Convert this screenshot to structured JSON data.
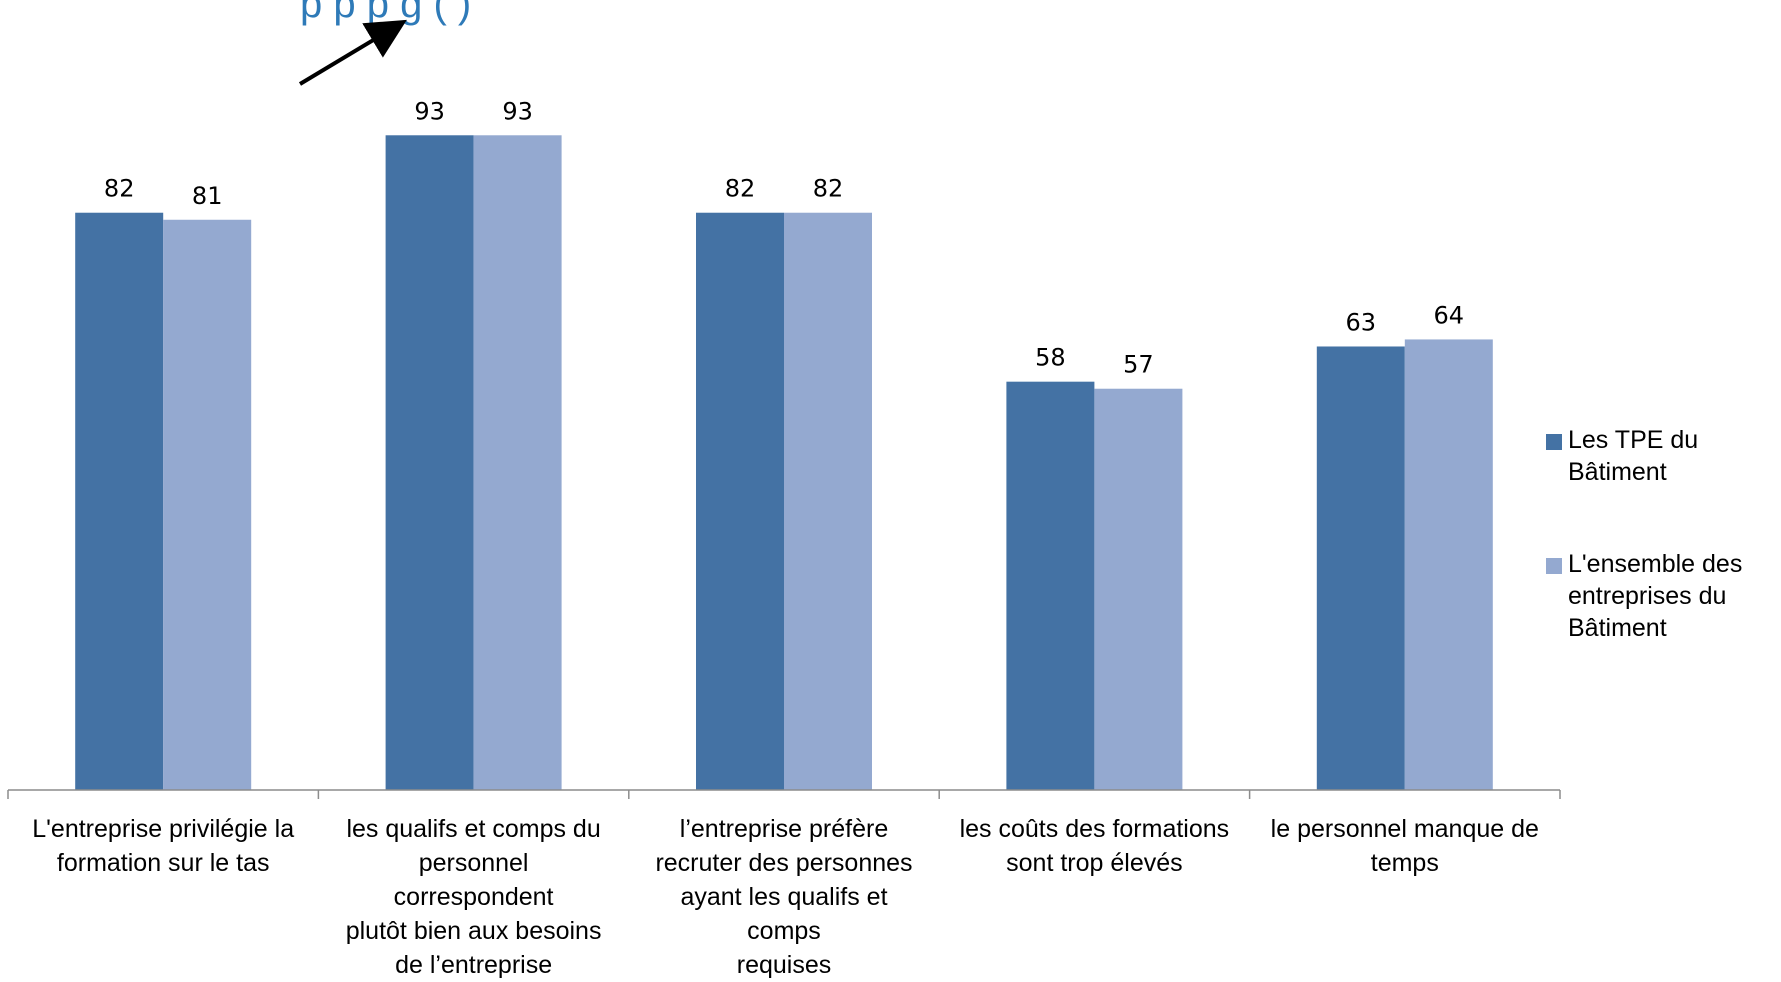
{
  "title_partial": "p          p                       p     g                           (   )",
  "colors": {
    "series1": "#4472a4",
    "series2": "#94a9d0",
    "title": "#2e7ab8",
    "axis": "#8c8c8c",
    "arrow": "#000000"
  },
  "chart_data": {
    "type": "bar",
    "categories": [
      "L'entreprise privilégie la formation sur le tas",
      "les qualifs et comps du personnel correspondent plutôt bien aux besoins de l’entreprise",
      "l’entreprise préfère recruter des personnes ayant les qualifs et comps requises",
      "les coûts des formations sont trop élevés",
      "le personnel manque de temps"
    ],
    "category_lines": [
      [
        "L'entreprise privilégie la",
        "formation sur le tas"
      ],
      [
        "les qualifs et comps du",
        "personnel correspondent",
        "plutôt bien aux besoins",
        "de l’entreprise"
      ],
      [
        "l’entreprise préfère",
        "recruter des personnes",
        "ayant les qualifs et comps",
        "requises"
      ],
      [
        "les coûts des formations",
        "sont trop élevés"
      ],
      [
        "le personnel manque de",
        "temps"
      ]
    ],
    "series": [
      {
        "name": "Les TPE du Bâtiment",
        "name_lines": [
          "Les TPE du",
          "Bâtiment"
        ],
        "values": [
          82,
          93,
          82,
          58,
          63
        ]
      },
      {
        "name": "L'ensemble des entreprises du Bâtiment",
        "name_lines": [
          "L'ensemble des",
          "entreprises du",
          "Bâtiment"
        ],
        "values": [
          81,
          93,
          82,
          57,
          64
        ]
      }
    ],
    "data_labels": true,
    "ylim": [
      0,
      100
    ],
    "grid": false,
    "legend_position": "right",
    "annotation": "arrow pointing to the 93 value of the second category"
  }
}
